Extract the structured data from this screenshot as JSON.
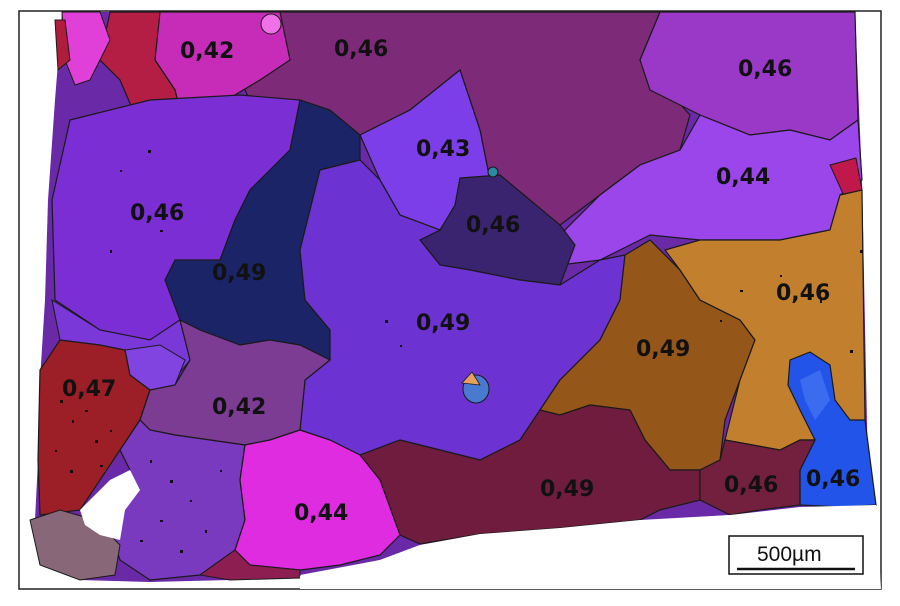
{
  "grain_labels": [
    "0,42",
    "0,46",
    "0,46",
    "0,43",
    "0,44",
    "0,46",
    "0,46",
    "0,49",
    "0,49",
    "0,46",
    "0,49",
    "0,47",
    "0,42",
    "0,44",
    "0,49",
    "0,46",
    "0,46"
  ],
  "scale_bar": {
    "label": "500µm"
  },
  "colors": {
    "violet": "#7a2fd0",
    "purple_light": "#9046e6",
    "navy": "#182266",
    "indigo_dark": "#3a2470",
    "plum": "#7d2a78",
    "magenta": "#e02ce0",
    "maroon": "#6e1c3c",
    "brown": "#9a5a14",
    "orange": "#c07f2c",
    "red": "#a01e28",
    "blue": "#2050e8"
  }
}
